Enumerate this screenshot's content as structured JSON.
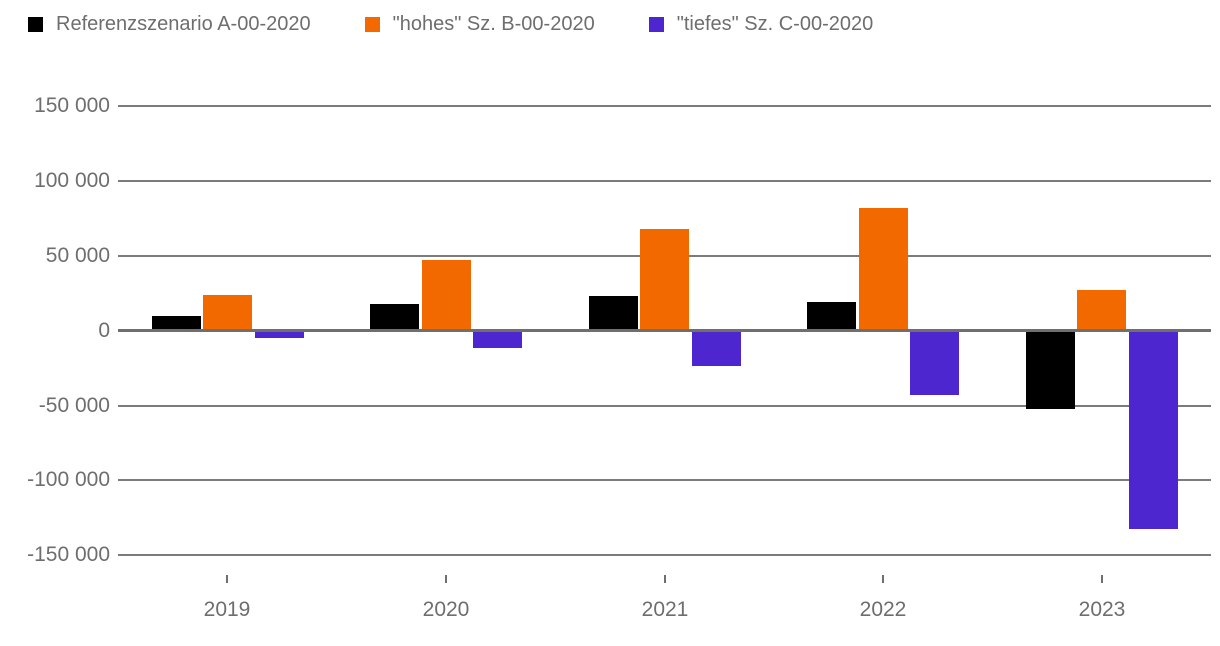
{
  "chart_data": {
    "type": "bar",
    "title": "",
    "xlabel": "",
    "ylabel": "",
    "categories": [
      "2019",
      "2020",
      "2021",
      "2022",
      "2023"
    ],
    "series": [
      {
        "name": "Referenzszenario A-00-2020",
        "color": "#000000",
        "values": [
          9000,
          17000,
          22000,
          18500,
          -51500
        ]
      },
      {
        "name": "\"hohes\" Sz. B-00-2020",
        "color": "#f26900",
        "values": [
          23000,
          46000,
          67000,
          81000,
          26500
        ]
      },
      {
        "name": "\"tiefes\" Sz. C-00-2020",
        "color": "#4d26d0",
        "values": [
          -4000,
          -10500,
          -22500,
          -42000,
          -132000
        ]
      }
    ],
    "ylim": [
      -150000,
      150000
    ],
    "ytick_step": 50000,
    "ytick_labels": [
      "150 000",
      "100 000",
      "50 000",
      "0",
      "-50 000",
      "-100 000",
      "-150 000"
    ],
    "grid": true,
    "legend_position": "top-left",
    "colors": {
      "grid": "#7b7b7b",
      "zero_line": "#6f6f6f",
      "axis_text": "#6e6e6e",
      "legend_text": "#6e6e6e"
    }
  }
}
